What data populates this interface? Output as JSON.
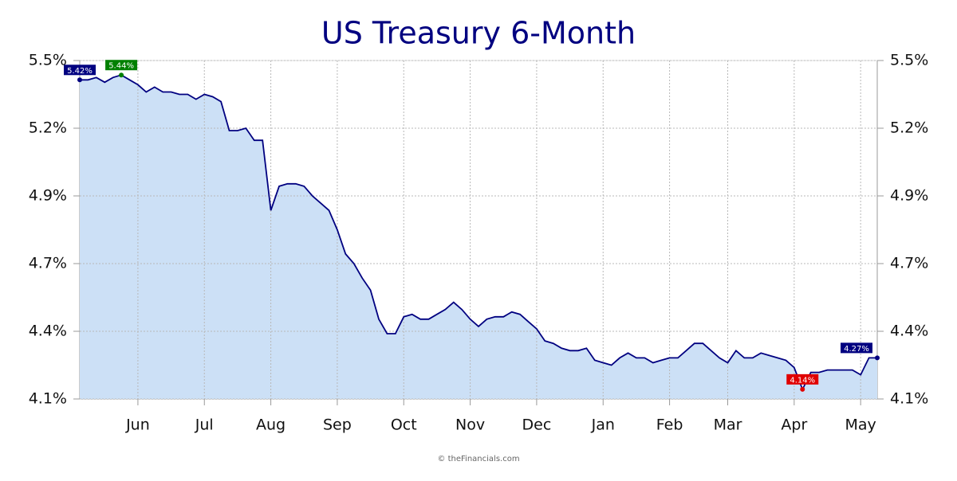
{
  "chart_data": {
    "type": "area",
    "title": "US Treasury 6-Month",
    "footer": "© theFinancials.com",
    "categories": [
      null,
      null,
      null,
      null,
      null,
      null,
      null,
      "Jun",
      null,
      null,
      null,
      null,
      null,
      null,
      null,
      "Jul",
      null,
      null,
      null,
      null,
      null,
      null,
      null,
      "Aug",
      null,
      null,
      null,
      null,
      null,
      null,
      null,
      "Sep",
      null,
      null,
      null,
      null,
      null,
      null,
      null,
      "Oct",
      null,
      null,
      null,
      null,
      null,
      null,
      null,
      "Nov",
      null,
      null,
      null,
      null,
      null,
      null,
      null,
      "Dec",
      null,
      null,
      null,
      null,
      null,
      null,
      null,
      "Jan",
      null,
      null,
      null,
      null,
      null,
      null,
      null,
      "Feb",
      null,
      null,
      null,
      null,
      null,
      null,
      "Mar",
      null,
      null,
      null,
      null,
      null,
      null,
      null,
      "Apr",
      null,
      null,
      null,
      null,
      null,
      null,
      null,
      "May",
      null,
      null
    ],
    "values": [
      5.42,
      5.42,
      5.43,
      5.41,
      5.43,
      5.44,
      5.42,
      5.4,
      5.37,
      5.39,
      5.37,
      5.37,
      5.36,
      5.36,
      5.34,
      5.36,
      5.35,
      5.33,
      5.21,
      5.21,
      5.22,
      5.17,
      5.17,
      4.88,
      4.98,
      4.99,
      4.99,
      4.98,
      4.94,
      4.91,
      4.88,
      4.8,
      4.7,
      4.66,
      4.6,
      4.55,
      4.43,
      4.37,
      4.37,
      4.44,
      4.45,
      4.43,
      4.43,
      4.45,
      4.47,
      4.5,
      4.47,
      4.43,
      4.4,
      4.43,
      4.44,
      4.44,
      4.46,
      4.45,
      4.42,
      4.39,
      4.34,
      4.33,
      4.31,
      4.3,
      4.3,
      4.31,
      4.26,
      4.25,
      4.24,
      4.27,
      4.29,
      4.27,
      4.27,
      4.25,
      4.26,
      4.27,
      4.27,
      4.3,
      4.33,
      4.33,
      4.3,
      4.27,
      4.25,
      4.3,
      4.27,
      4.27,
      4.29,
      4.28,
      4.27,
      4.26,
      4.23,
      4.14,
      4.21,
      4.21,
      4.22,
      4.22,
      4.22,
      4.22,
      4.2,
      4.27,
      4.27
    ],
    "value_labels": [
      "5.42%",
      null,
      null,
      null,
      null,
      "5.44%",
      null,
      null,
      null,
      null,
      null,
      null,
      null,
      null,
      null,
      null,
      null,
      null,
      null,
      null,
      null,
      null,
      null,
      null,
      null,
      null,
      null,
      null,
      null,
      null,
      null,
      null,
      null,
      null,
      null,
      null,
      null,
      null,
      null,
      null,
      null,
      null,
      null,
      null,
      null,
      null,
      null,
      null,
      null,
      null,
      null,
      null,
      null,
      null,
      null,
      null,
      null,
      null,
      null,
      null,
      null,
      null,
      null,
      null,
      null,
      null,
      null,
      null,
      null,
      null,
      null,
      null,
      null,
      null,
      null,
      null,
      null,
      null,
      null,
      null,
      null,
      null,
      null,
      null,
      null,
      null,
      null,
      "4.14%",
      null,
      null,
      null,
      null,
      null,
      null,
      null,
      null,
      "4.27%"
    ],
    "value_label_colors": {
      "first": "#000080",
      "max": "#008000",
      "min": "#e00000",
      "last": "#000080"
    },
    "color": "#000080",
    "fill_color": "#cce0f6",
    "ylim": [
      4.1,
      5.5
    ],
    "yticks": [
      {
        "value": 4.1,
        "label": "4.1%"
      },
      {
        "value": 4.38,
        "label": "4.4%"
      },
      {
        "value": 4.66,
        "label": "4.7%"
      },
      {
        "value": 4.94,
        "label": "4.9%"
      },
      {
        "value": 5.22,
        "label": "5.2%"
      },
      {
        "value": 5.5,
        "label": "5.5%"
      }
    ],
    "grid": true
  }
}
